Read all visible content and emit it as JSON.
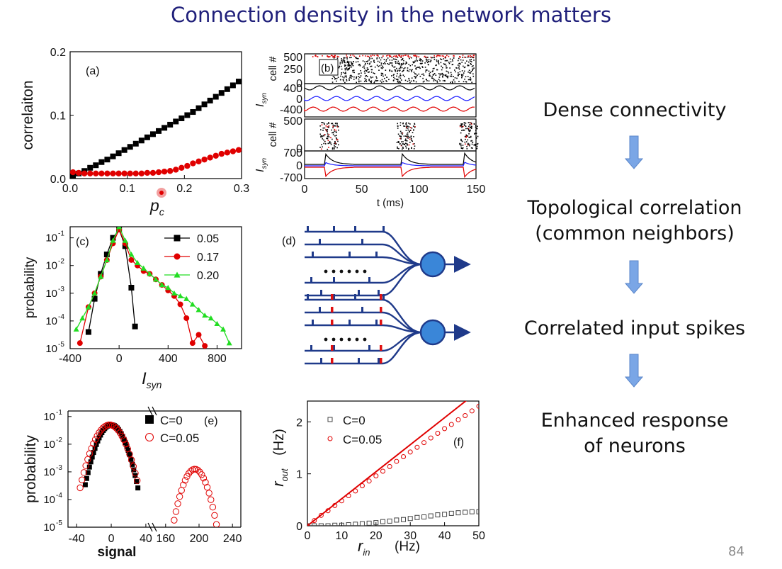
{
  "slide": {
    "title": "Connection density in the network matters",
    "page_number": "84",
    "flow": [
      "Dense connectivity",
      "Topological correlation\n(common neighbors)",
      "Correlated input spikes",
      "Enhanced response\nof neurons"
    ],
    "colors": {
      "title": "#1f1f7a",
      "arrow": "#7aa6e6"
    }
  },
  "panel_labels": {
    "a": "(a)",
    "b": "(b)",
    "c": "(c)",
    "d": "(d)",
    "e": "(e)",
    "f": "(f)"
  },
  "chart_data": [
    {
      "id": "a",
      "type": "scatter",
      "xlabel": "p",
      "xlabel_sub": "c",
      "ylabel": "correlaiton",
      "xlim": [
        0,
        0.3
      ],
      "ylim": [
        0,
        0.2
      ],
      "xticks": [
        "0.0",
        "0.1",
        "0.2",
        "0.3"
      ],
      "yticks": [
        "0.0",
        "0.1",
        "0.2"
      ],
      "series": [
        {
          "color": "#000000",
          "marker": "square",
          "x_start": 0.005,
          "x_step": 0.01,
          "values": [
            0.004,
            0.008,
            0.012,
            0.017,
            0.021,
            0.026,
            0.03,
            0.035,
            0.04,
            0.045,
            0.05,
            0.055,
            0.06,
            0.065,
            0.07,
            0.075,
            0.08,
            0.085,
            0.09,
            0.095,
            0.1,
            0.105,
            0.111,
            0.117,
            0.123,
            0.129,
            0.135,
            0.141,
            0.147,
            0.153
          ]
        },
        {
          "color": "#e00000",
          "marker": "circle",
          "x_start": 0.005,
          "x_step": 0.01,
          "values": [
            0.01,
            0.009,
            0.008,
            0.008,
            0.008,
            0.008,
            0.008,
            0.008,
            0.008,
            0.008,
            0.008,
            0.008,
            0.008,
            0.009,
            0.009,
            0.01,
            0.011,
            0.012,
            0.014,
            0.017,
            0.02,
            0.024,
            0.027,
            0.03,
            0.033,
            0.036,
            0.039,
            0.041,
            0.043,
            0.045
          ]
        }
      ]
    },
    {
      "id": "b",
      "type": "raster",
      "xlabel": "t (ms)",
      "xlim": [
        0,
        150
      ],
      "xticks": [
        "0",
        "50",
        "100",
        "150"
      ],
      "subpanels": [
        {
          "ylabel": "cell #",
          "yticks": [
            "500",
            "250",
            "0"
          ]
        },
        {
          "ylabel": "I",
          "ylabel_sub": "syn",
          "yticks": [
            "400",
            "0",
            "-400"
          ]
        },
        {
          "ylabel": "cell #",
          "yticks": [
            "500",
            "0"
          ]
        },
        {
          "ylabel": "I",
          "ylabel_sub": "syn",
          "yticks": [
            "700",
            "0",
            "-700"
          ]
        }
      ],
      "burst_times": [
        18,
        85,
        140
      ]
    },
    {
      "id": "c",
      "type": "line",
      "yscale": "log",
      "xlabel": "I",
      "xlabel_sub": "syn",
      "ylabel": "probability",
      "xlim": [
        -400,
        1000
      ],
      "ylim_exp": [
        -5,
        -0.6
      ],
      "xticks": [
        "-400",
        "0",
        "400",
        "800"
      ],
      "yticks_exp": [
        "-5",
        "-4",
        "-3",
        "-2",
        "-1"
      ],
      "series": [
        {
          "name": "0.05",
          "color": "#000000",
          "marker": "square",
          "x": [
            -250,
            -200,
            -150,
            -100,
            -50,
            0,
            50,
            100,
            130
          ],
          "log_values": [
            -4.4,
            -3.2,
            -2.3,
            -1.6,
            -1.0,
            -0.7,
            -1.3,
            -2.8,
            -4.2
          ]
        },
        {
          "name": "0.17",
          "color": "#e00000",
          "marker": "circle",
          "x": [
            -320,
            -250,
            -200,
            -150,
            -100,
            -50,
            0,
            50,
            100,
            150,
            200,
            250,
            300,
            350,
            400,
            450,
            500,
            550,
            600,
            650,
            700
          ],
          "log_values": [
            -4.8,
            -3.5,
            -3.0,
            -2.4,
            -1.8,
            -1.2,
            -0.7,
            -1.2,
            -1.8,
            -2.0,
            -2.2,
            -2.3,
            -2.5,
            -2.7,
            -2.9,
            -3.1,
            -3.4,
            -3.9,
            -4.8,
            -4.5,
            -4.9
          ]
        },
        {
          "name": "0.20",
          "color": "#22dd22",
          "marker": "triangle",
          "x": [
            -350,
            -300,
            -250,
            -200,
            -150,
            -100,
            -50,
            0,
            50,
            100,
            150,
            200,
            250,
            300,
            350,
            400,
            450,
            500,
            550,
            600,
            650,
            700,
            750,
            800,
            850,
            900
          ],
          "log_values": [
            -4.3,
            -3.9,
            -3.5,
            -3.0,
            -2.4,
            -1.8,
            -1.1,
            -0.6,
            -1.1,
            -1.6,
            -1.9,
            -2.1,
            -2.3,
            -2.5,
            -2.7,
            -2.8,
            -3.0,
            -3.1,
            -3.2,
            -3.4,
            -3.6,
            -3.8,
            -3.9,
            -4.1,
            -4.3,
            -4.8
          ]
        }
      ]
    },
    {
      "id": "e",
      "type": "scatter",
      "yscale": "log",
      "xlabel": "signal",
      "ylabel": "probability",
      "xticks": [
        "-40",
        "0",
        "40",
        "160",
        "200",
        "240"
      ],
      "yticks_exp": [
        "-5",
        "-4",
        "-3",
        "-2",
        "-1"
      ],
      "series": [
        {
          "name": "C=0",
          "color": "#000000",
          "marker": "square"
        },
        {
          "name": "C=0.05",
          "color": "#e00000",
          "marker": "open-circle"
        }
      ]
    },
    {
      "id": "f",
      "type": "scatter",
      "xlabel": "r",
      "xlabel_sub": "in",
      "xlabel_unit": "(Hz)",
      "ylabel": "r",
      "ylabel_sub": "out",
      "ylabel_unit": "(Hz)",
      "xlim": [
        0,
        50
      ],
      "ylim": [
        0,
        2.4
      ],
      "xticks": [
        "0",
        "10",
        "20",
        "30",
        "40",
        "50"
      ],
      "yticks": [
        "0",
        "1",
        "2"
      ],
      "series": [
        {
          "name": "C=0",
          "color": "#444444",
          "marker": "open-square",
          "x_start": 0,
          "x_step": 2,
          "values": [
            0.0,
            0.0,
            0.0,
            0.0,
            0.01,
            0.01,
            0.02,
            0.03,
            0.04,
            0.05,
            0.06,
            0.08,
            0.09,
            0.11,
            0.12,
            0.14,
            0.16,
            0.17,
            0.19,
            0.21,
            0.22,
            0.24,
            0.25,
            0.26,
            0.27,
            0.27
          ]
        },
        {
          "name": "C=0.05",
          "color": "#e00000",
          "marker": "open-circle",
          "x_start": 0,
          "x_step": 2,
          "values": [
            0.0,
            0.1,
            0.2,
            0.29,
            0.39,
            0.48,
            0.58,
            0.67,
            0.77,
            0.86,
            0.96,
            1.05,
            1.14,
            1.24,
            1.33,
            1.42,
            1.51,
            1.6,
            1.69,
            1.78,
            1.87,
            1.95,
            2.04,
            2.12,
            2.21,
            2.3
          ]
        }
      ]
    }
  ]
}
